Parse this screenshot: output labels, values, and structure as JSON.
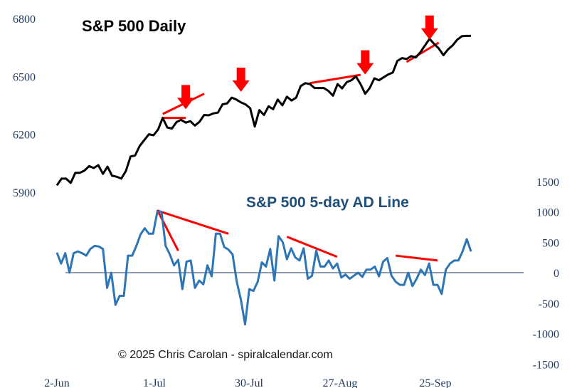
{
  "chart_data": [
    {
      "type": "line",
      "title": "S&P 500 Daily",
      "ylim": [
        5800,
        6800
      ],
      "yticks": [
        5900,
        6200,
        6500,
        6800
      ],
      "x_labels": [
        "2-Jun",
        "1-Jul",
        "30-Jul",
        "27-Aug",
        "25-Sep"
      ],
      "series": [
        {
          "color": "#000000",
          "values": [
            5935,
            5970,
            5970,
            5948,
            6000,
            6000,
            6012,
            6035,
            6025,
            6040,
            5995,
            6032,
            5985,
            5980,
            5970,
            6010,
            6085,
            6090,
            6140,
            6170,
            6200,
            6195,
            6225,
            6285,
            6235,
            6230,
            6263,
            6275,
            6260,
            6268,
            6245,
            6265,
            6300,
            6298,
            6308,
            6312,
            6355,
            6360,
            6390,
            6380,
            6365,
            6355,
            6335,
            6240,
            6325,
            6300,
            6345,
            6330,
            6380,
            6350,
            6395,
            6375,
            6390,
            6450,
            6465,
            6460,
            6440,
            6440,
            6440,
            6425,
            6400,
            6460,
            6438,
            6470,
            6480,
            6500,
            6460,
            6410,
            6440,
            6490,
            6480,
            6495,
            6510,
            6520,
            6580,
            6595,
            6590,
            6605,
            6598,
            6625,
            6660,
            6695,
            6668,
            6645,
            6610,
            6640,
            6660,
            6690,
            6708,
            6710,
            6710
          ]
        },
        {
          "color": "#ff0000",
          "trendlines": [
            {
              "from": [
                23,
                6305
              ],
              "to": [
                32,
                6410
              ]
            },
            {
              "from": [
                23,
                6285
              ],
              "to": [
                28,
                6285
              ]
            },
            {
              "from": [
                55,
                6465
              ],
              "to": [
                66,
                6508
              ]
            },
            {
              "from": [
                76,
                6575
              ],
              "to": [
                83,
                6675
              ]
            }
          ]
        }
      ],
      "annotations": [
        {
          "type": "down-arrow",
          "color": "#ff0000",
          "x": 28,
          "y": 6330
        },
        {
          "type": "down-arrow",
          "color": "#ff0000",
          "x": 40,
          "y": 6420
        },
        {
          "type": "down-arrow",
          "color": "#ff0000",
          "x": 67,
          "y": 6510
        },
        {
          "type": "down-arrow",
          "color": "#ff0000",
          "x": 81,
          "y": 6690
        }
      ]
    },
    {
      "type": "line",
      "title": "S&P 500 5-day AD Line",
      "ylim": [
        -1500,
        1500
      ],
      "yticks": [
        -1500,
        -1000,
        -500,
        0,
        500,
        1000,
        1500
      ],
      "zero_line": true,
      "series": [
        {
          "color": "#2e75b6",
          "values": [
            330,
            150,
            320,
            0,
            320,
            350,
            320,
            280,
            390,
            440,
            430,
            390,
            -250,
            0,
            -530,
            -380,
            -380,
            280,
            280,
            440,
            630,
            730,
            640,
            640,
            1000,
            1000,
            440,
            300,
            120,
            210,
            -270,
            180,
            200,
            -250,
            -130,
            -190,
            120,
            -60,
            640,
            640,
            420,
            380,
            300,
            -150,
            -450,
            -850,
            -270,
            -300,
            -150,
            170,
            100,
            390,
            -130,
            600,
            500,
            220,
            400,
            250,
            200,
            400,
            -100,
            -50,
            360,
            100,
            100,
            200,
            70,
            150,
            -80,
            -30,
            -100,
            -50,
            0,
            -70,
            50,
            50,
            100,
            -60,
            180,
            240,
            -50,
            -150,
            -200,
            -200,
            0,
            -220,
            -100,
            50,
            -40,
            150,
            -200,
            -200,
            -350,
            50,
            150,
            200,
            200,
            350,
            550,
            350
          ]
        },
        {
          "color": "#ff0000",
          "trendlines": [
            {
              "from": [
                24,
                1030
              ],
              "to": [
                29,
                360
              ]
            },
            {
              "from": [
                24,
                1020
              ],
              "to": [
                41,
                640
              ]
            },
            {
              "from": [
                55,
                590
              ],
              "to": [
                67,
                260
              ]
            },
            {
              "from": [
                81,
                280
              ],
              "to": [
                91,
                200
              ]
            }
          ]
        }
      ]
    }
  ],
  "text": {
    "copyright": "© 2025 Chris Carolan - spiralcalendar.com"
  }
}
